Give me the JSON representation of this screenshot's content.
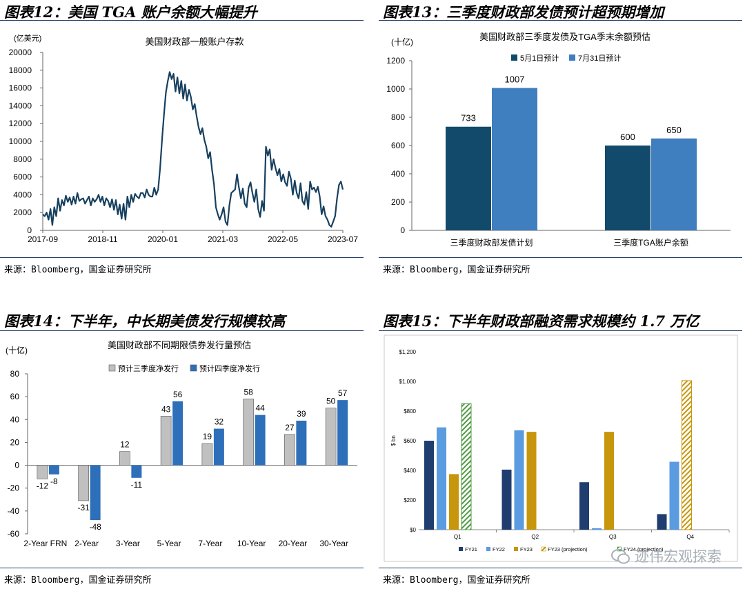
{
  "colors": {
    "navy": "#124a6b",
    "steel": "#3f7ebf",
    "rule": "#1f3864",
    "line": "#17405f",
    "gray": "#c0c0c0",
    "blue2": "#2e6fba",
    "fy21": "#1f3d6e",
    "fy22": "#5b9bdf",
    "fy23": "#c7960c",
    "fy23p": "#c7960c",
    "fy24": "#4f9b42"
  },
  "panels": {
    "p12": {
      "title": "图表12：美国 TGA 账户余额大幅提升",
      "source": "来源：Bloomberg，国金证券研究所"
    },
    "p13": {
      "title": "图表13：三季度财政部发债预计超预期增加",
      "source": "来源：Bloomberg，国金证券研究所"
    },
    "p14": {
      "title": "图表14：下半年，中长期美债发行规模较高",
      "source": "来源：Bloomberg，国金证券研究所"
    },
    "p15": {
      "title": "图表15：下半年财政部融资需求规模约 1.7 万亿",
      "source": "来源：Bloomberg，国金证券研究所"
    }
  },
  "watermark": "迹伟宏观探索",
  "chart_data": [
    {
      "id": "c12",
      "type": "line",
      "title": "美国财政部一般账户存款",
      "unit": "(亿美元)",
      "ylim": [
        0,
        20000
      ],
      "yticks": [
        0,
        2000,
        4000,
        6000,
        8000,
        10000,
        12000,
        14000,
        16000,
        18000,
        20000
      ],
      "xticks": [
        "2017-09",
        "2018-11",
        "2020-01",
        "2021-03",
        "2022-05",
        "2023-07"
      ],
      "x_range": [
        "2017-09",
        "2023-07"
      ],
      "series": [
        {
          "values": [
            1800,
            1600,
            2000,
            1200,
            2400,
            600,
            2600,
            1600,
            3600,
            2200,
            3400,
            2800,
            3900,
            3200,
            3700,
            2900,
            3800,
            3000,
            4200,
            3300,
            3500,
            3600,
            3000,
            3400,
            3800,
            2800,
            3600,
            3200,
            3500,
            4000,
            3200,
            3800,
            2800,
            3600,
            3300,
            2600,
            3500,
            2300,
            3400,
            1800,
            2900,
            1300,
            3000,
            1200,
            3800,
            2600,
            4000,
            3200,
            4100,
            3800,
            3600,
            4200,
            4200,
            3700,
            4600,
            4000,
            3800,
            3800,
            4800,
            4000,
            4600,
            7000,
            10200,
            13000,
            15500,
            16800,
            17800,
            17000,
            17600,
            15600,
            17200,
            15400,
            16800,
            14800,
            16400,
            14600,
            15800,
            15000,
            13600,
            14200,
            12800,
            11600,
            10800,
            11500,
            10200,
            9400,
            8100,
            8800,
            6800,
            5200,
            2600,
            1800,
            1200,
            1800,
            2600,
            1000,
            600,
            2800,
            4200,
            4400,
            4600,
            6300,
            4800,
            3600,
            4700,
            3000,
            2600,
            4800,
            5400,
            4200,
            3200,
            4600,
            2400,
            1500,
            3300,
            2200,
            9400,
            8400,
            9100,
            6800,
            8000,
            7000,
            6200,
            6900,
            5500,
            6300,
            5400,
            5000,
            6600,
            5800,
            4000,
            5600,
            4200,
            3600,
            5300,
            3300,
            2900,
            4300,
            2400,
            5500,
            4600,
            4800,
            4300,
            4900,
            3800,
            1800,
            2700,
            1600,
            1200,
            600,
            400,
            1000,
            1600,
            3600,
            5100,
            5500,
            4600
          ]
        }
      ]
    },
    {
      "id": "c13",
      "type": "bar",
      "title": "美国财政部三季度发债及TGA季末余额预估",
      "unit": "(十亿)",
      "ylim": [
        0,
        1200
      ],
      "yticks": [
        0,
        200,
        400,
        600,
        800,
        1000,
        1200
      ],
      "categories": [
        "三季度财政部发债计划",
        "三季度TGA账户余额"
      ],
      "series": [
        {
          "name": "5月1日预计",
          "values": [
            733,
            600
          ]
        },
        {
          "name": "7月31日预计",
          "values": [
            1007,
            650
          ]
        }
      ]
    },
    {
      "id": "c14",
      "type": "bar",
      "title": "美国财政部不同期限债券发行量预估",
      "unit": "(十亿)",
      "ylim": [
        -60,
        80
      ],
      "yticks": [
        -60,
        -40,
        -20,
        0,
        20,
        40,
        60,
        80
      ],
      "categories": [
        "2-Year FRN",
        "2-Year",
        "3-Year",
        "5-Year",
        "7-Year",
        "10-Year",
        "20-Year",
        "30-Year"
      ],
      "series": [
        {
          "name": "预计三季度净发行",
          "values": [
            -12,
            -31,
            12,
            43,
            19,
            58,
            27,
            50
          ]
        },
        {
          "name": "预计四季度净发行",
          "values": [
            -8,
            -48,
            -11,
            56,
            32,
            44,
            39,
            57
          ]
        }
      ]
    },
    {
      "id": "c15",
      "type": "bar",
      "ylabel": "$ bn",
      "ylim": [
        0,
        1200
      ],
      "yticks": [
        "$0",
        "$200",
        "$400",
        "$600",
        "$800",
        "$1,000",
        "$1,200"
      ],
      "categories": [
        "Q1",
        "Q2",
        "Q3",
        "Q4"
      ],
      "series": [
        {
          "name": "FY21",
          "values": [
            600,
            405,
            320,
            105
          ]
        },
        {
          "name": "FY22",
          "values": [
            690,
            670,
            10,
            458
          ]
        },
        {
          "name": "FY23",
          "values": [
            375,
            660,
            660,
            null
          ]
        },
        {
          "name": "FY23 (projection)",
          "values": [
            null,
            null,
            null,
            1005
          ]
        },
        {
          "name": "FY24 (projection)",
          "values": [
            850,
            null,
            null,
            null
          ]
        }
      ]
    }
  ]
}
